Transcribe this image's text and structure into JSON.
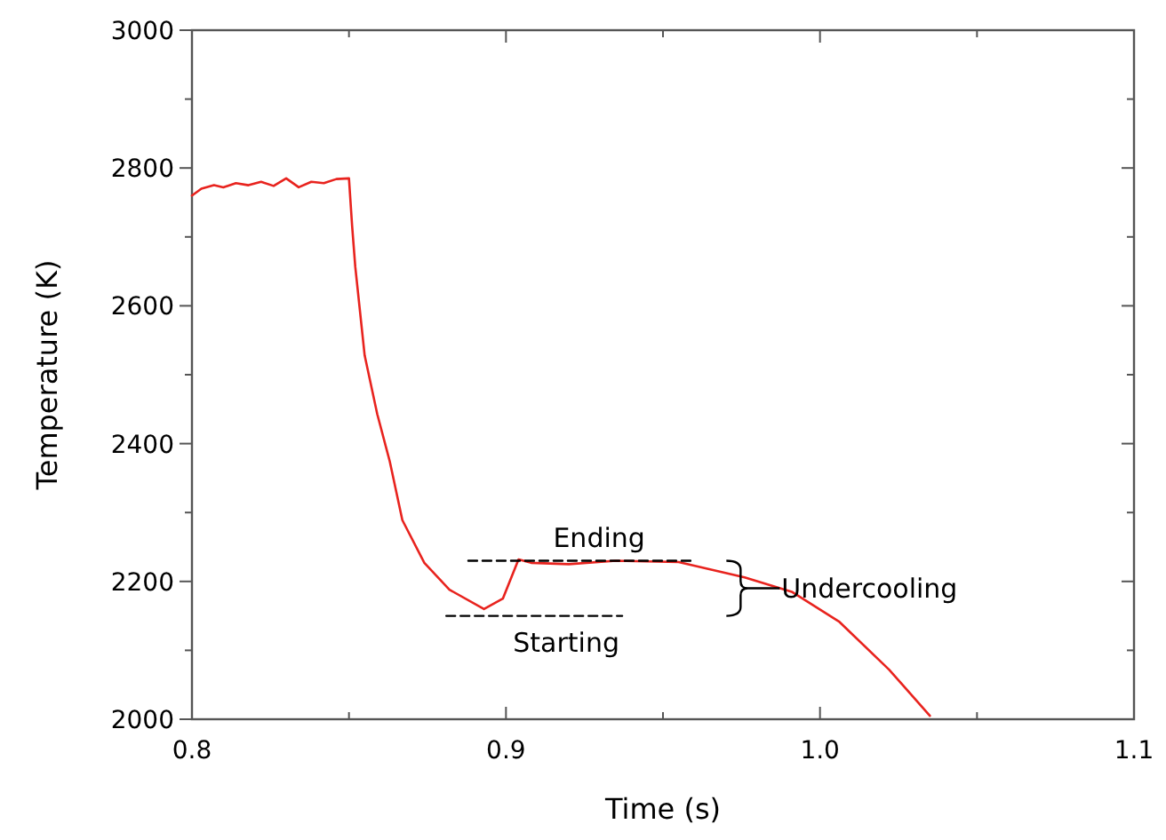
{
  "chart_data": {
    "type": "line",
    "xlabel": "Time (s)",
    "ylabel": "Temperature (K)",
    "xlim": [
      0.8,
      1.1
    ],
    "ylim": [
      2000,
      3000
    ],
    "xticks": [
      0.8,
      {
        "value": 0.85,
        "label": null
      },
      0.9,
      {
        "value": 0.95,
        "label": null
      },
      {
        "value": 1.0,
        "label": "1.0"
      },
      {
        "value": 1.05,
        "label": null
      },
      1.1
    ],
    "yticks": [
      2000,
      {
        "value": 2100,
        "label": null
      },
      2200,
      {
        "value": 2300,
        "label": null
      },
      2400,
      {
        "value": 2500,
        "label": null
      },
      2600,
      {
        "value": 2700,
        "label": null
      },
      2800,
      {
        "value": 2900,
        "label": null
      },
      3000
    ],
    "grid": false,
    "series": [
      {
        "color": "#e8231e",
        "x": [
          0.8,
          0.803,
          0.807,
          0.81,
          0.814,
          0.818,
          0.822,
          0.826,
          0.83,
          0.834,
          0.838,
          0.842,
          0.846,
          0.85,
          0.851,
          0.852,
          0.855,
          0.859,
          0.863,
          0.867,
          0.874,
          0.882,
          0.893,
          0.899,
          0.904,
          0.908,
          0.92,
          0.935,
          0.955,
          0.976,
          0.991,
          1.006,
          1.022,
          1.035
        ],
        "values": [
          2760,
          2770,
          2775,
          2772,
          2778,
          2775,
          2780,
          2774,
          2785,
          2772,
          2780,
          2778,
          2784,
          2785,
          2716,
          2657,
          2528,
          2443,
          2374,
          2289,
          2227,
          2188,
          2160,
          2175,
          2232,
          2227,
          2225,
          2230,
          2228,
          2206,
          2185,
          2142,
          2072,
          2005
        ]
      },
      {
        "type": "line",
        "color": "#000000",
        "line_style": "dashed",
        "x": [
          0.888,
          0.96
        ],
        "values": [
          2230,
          2230
        ]
      },
      {
        "type": "line",
        "color": "#000000",
        "line_style": "dashed",
        "x": [
          0.881,
          0.937
        ],
        "values": [
          2150,
          2150
        ]
      }
    ],
    "annotations": [
      "Ending",
      "Starting",
      "Undercooling"
    ]
  }
}
